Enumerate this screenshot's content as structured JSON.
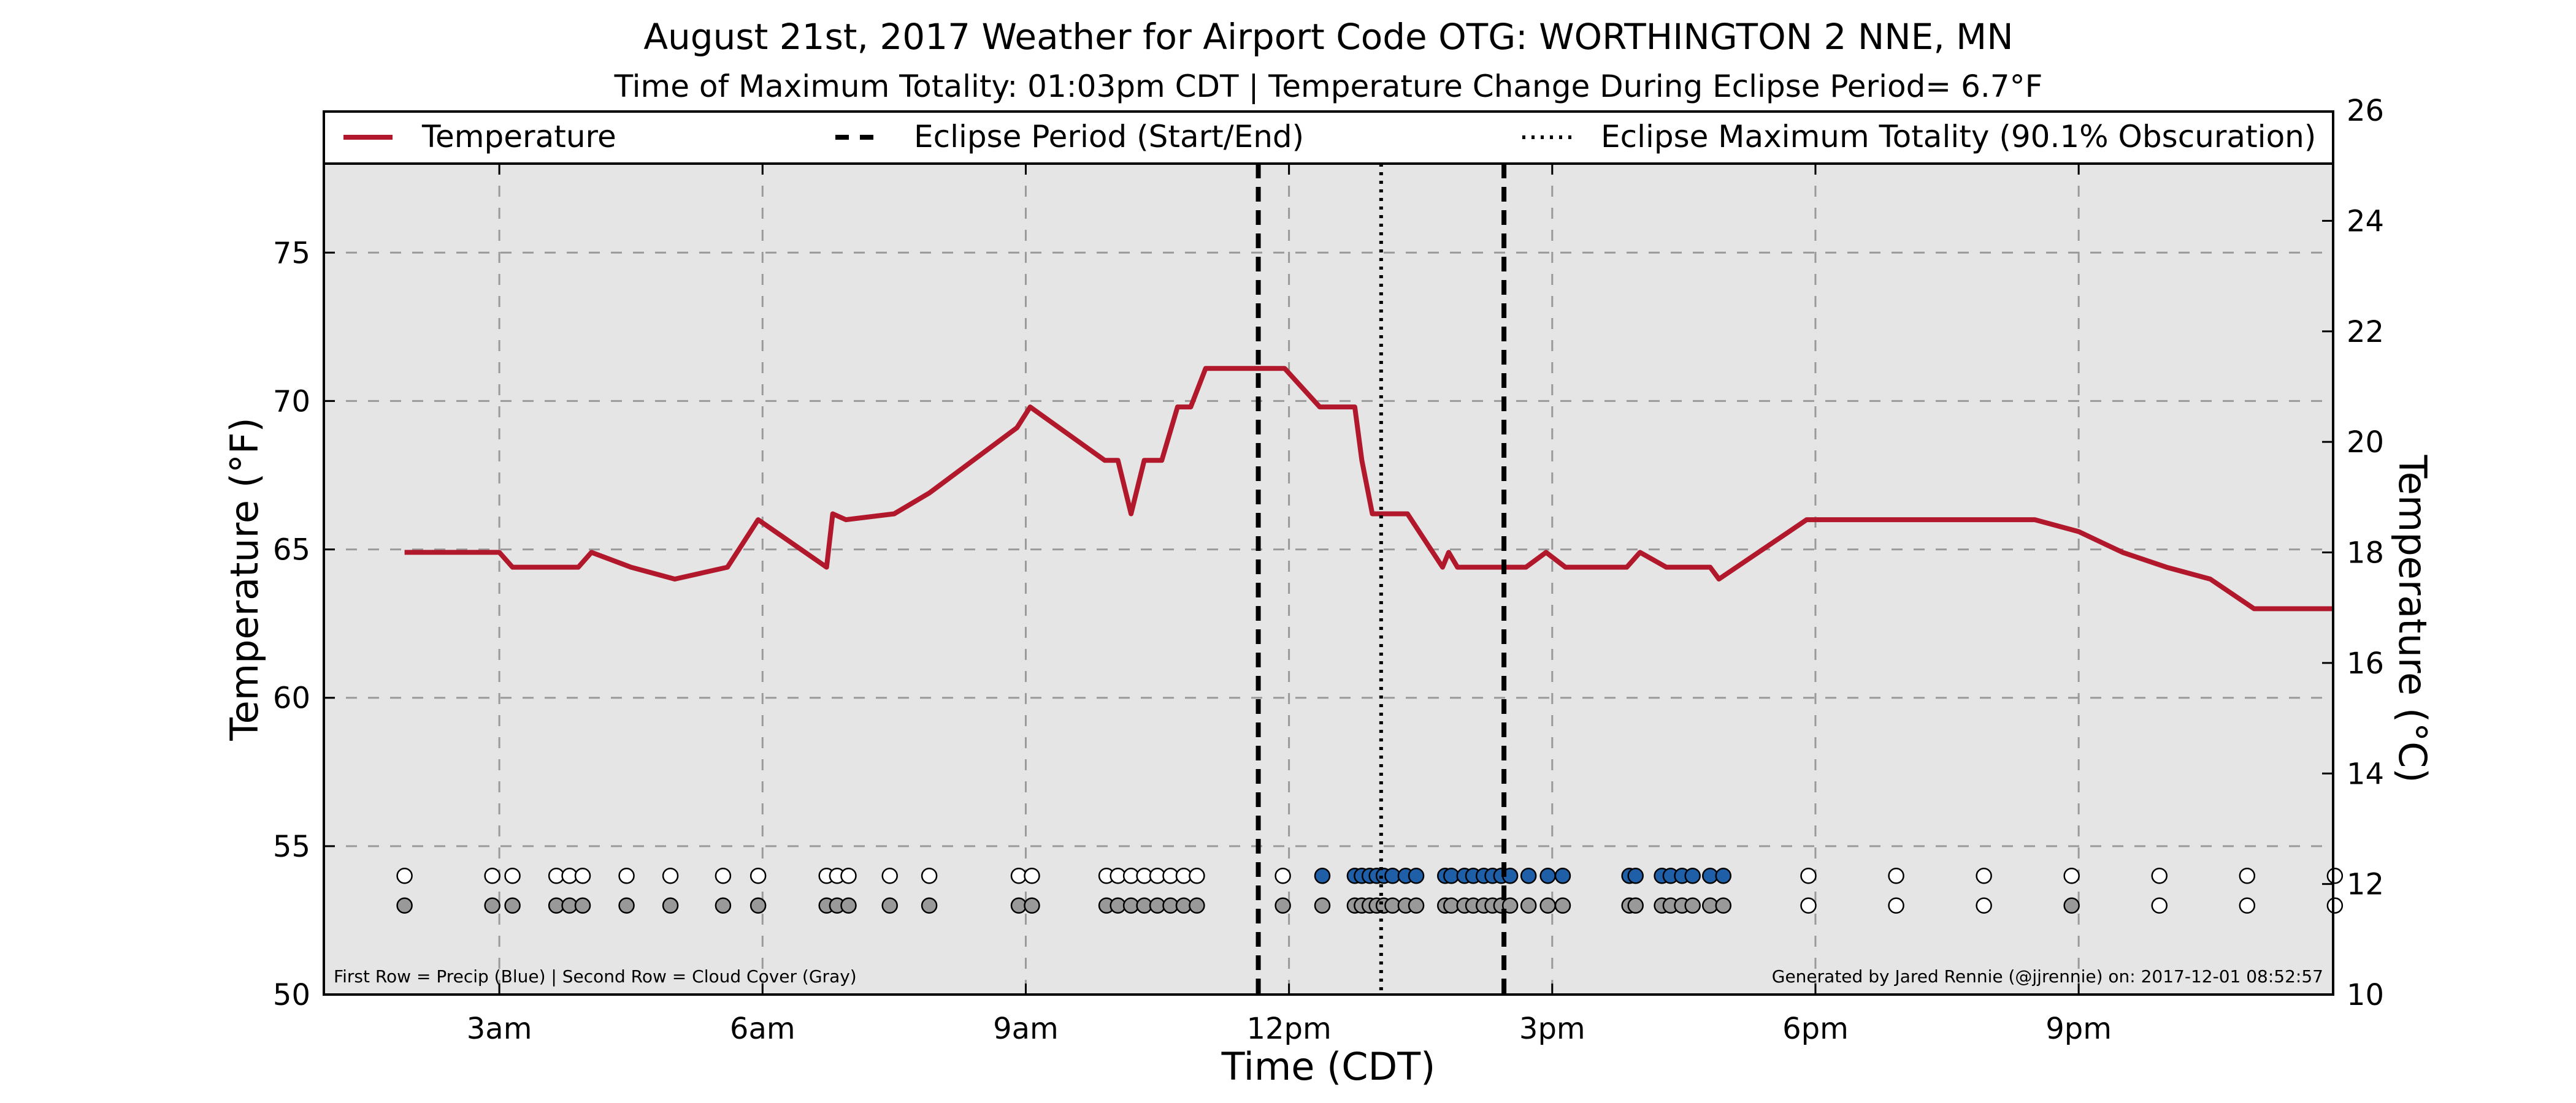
{
  "chart_data": {
    "type": "line",
    "title": "August 21st, 2017 Weather for Airport Code OTG: WORTHINGTON 2 NNE, MN",
    "subtitle": "Time of Maximum Totality: 01:03pm CDT | Temperature Change During Eclipse Period= 6.7°F",
    "xlabel": "Time (CDT)",
    "ylabel": "Temperature (°F)",
    "ylabel_right": "Temperature (°C)",
    "xlim": [
      1.0,
      23.9
    ],
    "ylim": [
      50,
      78
    ],
    "ylim_right": [
      10,
      26
    ],
    "x_ticks": [
      {
        "value": 3,
        "label": "3am"
      },
      {
        "value": 6,
        "label": "6am"
      },
      {
        "value": 9,
        "label": "9am"
      },
      {
        "value": 12,
        "label": "12pm"
      },
      {
        "value": 15,
        "label": "3pm"
      },
      {
        "value": 18,
        "label": "6pm"
      },
      {
        "value": 21,
        "label": "9pm"
      }
    ],
    "y_ticks": [
      50,
      55,
      60,
      65,
      70,
      75
    ],
    "y_ticks_right": [
      10,
      12,
      14,
      16,
      18,
      20,
      22,
      24,
      26
    ],
    "grid": true,
    "legend": {
      "placement": "top",
      "entries": [
        {
          "label": "Temperature",
          "style": "solid",
          "color": "#b2182b"
        },
        {
          "label": "Eclipse Period (Start/End)",
          "style": "dashed",
          "color": "#000000"
        },
        {
          "label": "Eclipse Maximum Totality (90.1% Obscuration)",
          "style": "dotted",
          "color": "#000000"
        }
      ]
    },
    "series": [
      {
        "name": "Temperature",
        "color": "#b2182b",
        "x": [
          1.92,
          2.25,
          2.6,
          3.0,
          3.15,
          3.55,
          3.9,
          4.05,
          4.5,
          5.0,
          5.6,
          5.95,
          6.73,
          6.8,
          6.95,
          7.5,
          7.9,
          8.9,
          9.05,
          9.9,
          10.05,
          10.2,
          10.35,
          10.55,
          10.73,
          10.88,
          11.05,
          11.3,
          11.5,
          11.75,
          11.95,
          12.35,
          12.75,
          12.83,
          12.95,
          13.35,
          13.75,
          13.82,
          13.92,
          14.3,
          14.45,
          14.7,
          14.93,
          15.15,
          15.5,
          15.85,
          16.0,
          16.3,
          16.8,
          16.9,
          17.9,
          18.1,
          18.5,
          19.0,
          19.5,
          20.0,
          20.5,
          21.0,
          21.5,
          22.0,
          22.5,
          23.0,
          23.9
        ],
        "values": [
          64.9,
          64.9,
          64.9,
          64.9,
          64.4,
          64.4,
          64.4,
          64.9,
          64.4,
          64.0,
          64.4,
          66.0,
          64.4,
          66.2,
          66.0,
          66.2,
          66.9,
          69.1,
          69.8,
          68.0,
          68.0,
          66.2,
          68.0,
          68.0,
          69.8,
          69.8,
          71.1,
          71.1,
          71.1,
          71.1,
          71.1,
          69.8,
          69.8,
          68.0,
          66.2,
          66.2,
          64.4,
          64.9,
          64.4,
          64.4,
          64.4,
          64.4,
          64.9,
          64.4,
          64.4,
          64.4,
          64.9,
          64.4,
          64.4,
          64.0,
          66.0,
          66.0,
          66.0,
          66.0,
          66.0,
          66.0,
          66.0,
          65.6,
          64.9,
          64.4,
          64.0,
          63.0,
          63.0
        ]
      }
    ],
    "eclipse": {
      "start": 11.65,
      "end": 14.45,
      "max_totality": 13.05,
      "max_totality_label": "01:03pm CDT",
      "obscuration": "90.1%",
      "temperature_change": "6.7°F"
    },
    "precip_row": {
      "name": "Precip (Blue)",
      "y_value": 54.0,
      "points": [
        {
          "x": 1.92,
          "precip": false
        },
        {
          "x": 2.92,
          "precip": false
        },
        {
          "x": 3.15,
          "precip": false
        },
        {
          "x": 3.65,
          "precip": false
        },
        {
          "x": 3.8,
          "precip": false
        },
        {
          "x": 3.95,
          "precip": false
        },
        {
          "x": 4.45,
          "precip": false
        },
        {
          "x": 4.95,
          "precip": false
        },
        {
          "x": 5.55,
          "precip": false
        },
        {
          "x": 5.95,
          "precip": false
        },
        {
          "x": 6.73,
          "precip": false
        },
        {
          "x": 6.85,
          "precip": false
        },
        {
          "x": 6.98,
          "precip": false
        },
        {
          "x": 7.45,
          "precip": false
        },
        {
          "x": 7.9,
          "precip": false
        },
        {
          "x": 8.92,
          "precip": false
        },
        {
          "x": 9.07,
          "precip": false
        },
        {
          "x": 9.92,
          "precip": false
        },
        {
          "x": 10.05,
          "precip": false
        },
        {
          "x": 10.2,
          "precip": false
        },
        {
          "x": 10.35,
          "precip": false
        },
        {
          "x": 10.5,
          "precip": false
        },
        {
          "x": 10.65,
          "precip": false
        },
        {
          "x": 10.8,
          "precip": false
        },
        {
          "x": 10.95,
          "precip": false
        },
        {
          "x": 11.93,
          "precip": false
        },
        {
          "x": 12.38,
          "precip": true
        },
        {
          "x": 12.75,
          "precip": true
        },
        {
          "x": 12.83,
          "precip": true
        },
        {
          "x": 12.92,
          "precip": true
        },
        {
          "x": 13.0,
          "precip": true
        },
        {
          "x": 13.08,
          "precip": true
        },
        {
          "x": 13.18,
          "precip": true
        },
        {
          "x": 13.33,
          "precip": true
        },
        {
          "x": 13.45,
          "precip": true
        },
        {
          "x": 13.78,
          "precip": true
        },
        {
          "x": 13.85,
          "precip": true
        },
        {
          "x": 14.0,
          "precip": true
        },
        {
          "x": 14.1,
          "precip": true
        },
        {
          "x": 14.22,
          "precip": true
        },
        {
          "x": 14.32,
          "precip": true
        },
        {
          "x": 14.42,
          "precip": true
        },
        {
          "x": 14.52,
          "precip": true
        },
        {
          "x": 14.73,
          "precip": true
        },
        {
          "x": 14.95,
          "precip": true
        },
        {
          "x": 15.12,
          "precip": true
        },
        {
          "x": 15.88,
          "precip": true
        },
        {
          "x": 15.95,
          "precip": true
        },
        {
          "x": 16.25,
          "precip": true
        },
        {
          "x": 16.35,
          "precip": true
        },
        {
          "x": 16.48,
          "precip": true
        },
        {
          "x": 16.6,
          "precip": true
        },
        {
          "x": 16.8,
          "precip": true
        },
        {
          "x": 16.95,
          "precip": true
        },
        {
          "x": 17.92,
          "precip": false
        },
        {
          "x": 18.92,
          "precip": false
        },
        {
          "x": 19.92,
          "precip": false
        },
        {
          "x": 20.92,
          "precip": false
        },
        {
          "x": 21.92,
          "precip": false
        },
        {
          "x": 22.92,
          "precip": false
        },
        {
          "x": 23.92,
          "precip": false
        }
      ]
    },
    "cloud_row": {
      "name": "Cloud Cover (Gray)",
      "y_value": 53.0,
      "points": [
        {
          "x": 1.92,
          "cloud": true
        },
        {
          "x": 2.92,
          "cloud": true
        },
        {
          "x": 3.15,
          "cloud": true
        },
        {
          "x": 3.65,
          "cloud": true
        },
        {
          "x": 3.8,
          "cloud": true
        },
        {
          "x": 3.95,
          "cloud": true
        },
        {
          "x": 4.45,
          "cloud": true
        },
        {
          "x": 4.95,
          "cloud": true
        },
        {
          "x": 5.55,
          "cloud": true
        },
        {
          "x": 5.95,
          "cloud": true
        },
        {
          "x": 6.73,
          "cloud": true
        },
        {
          "x": 6.85,
          "cloud": true
        },
        {
          "x": 6.98,
          "cloud": true
        },
        {
          "x": 7.45,
          "cloud": true
        },
        {
          "x": 7.9,
          "cloud": true
        },
        {
          "x": 8.92,
          "cloud": true
        },
        {
          "x": 9.07,
          "cloud": true
        },
        {
          "x": 9.92,
          "cloud": true
        },
        {
          "x": 10.05,
          "cloud": true
        },
        {
          "x": 10.2,
          "cloud": true
        },
        {
          "x": 10.35,
          "cloud": true
        },
        {
          "x": 10.5,
          "cloud": true
        },
        {
          "x": 10.65,
          "cloud": true
        },
        {
          "x": 10.8,
          "cloud": true
        },
        {
          "x": 10.95,
          "cloud": true
        },
        {
          "x": 11.93,
          "cloud": true
        },
        {
          "x": 12.38,
          "cloud": true
        },
        {
          "x": 12.75,
          "cloud": true
        },
        {
          "x": 12.83,
          "cloud": true
        },
        {
          "x": 12.92,
          "cloud": true
        },
        {
          "x": 13.0,
          "cloud": true
        },
        {
          "x": 13.08,
          "cloud": true
        },
        {
          "x": 13.18,
          "cloud": true
        },
        {
          "x": 13.33,
          "cloud": true
        },
        {
          "x": 13.45,
          "cloud": true
        },
        {
          "x": 13.78,
          "cloud": true
        },
        {
          "x": 13.85,
          "cloud": true
        },
        {
          "x": 14.0,
          "cloud": true
        },
        {
          "x": 14.1,
          "cloud": true
        },
        {
          "x": 14.22,
          "cloud": true
        },
        {
          "x": 14.32,
          "cloud": true
        },
        {
          "x": 14.42,
          "cloud": true
        },
        {
          "x": 14.52,
          "cloud": true
        },
        {
          "x": 14.73,
          "cloud": true
        },
        {
          "x": 14.95,
          "cloud": true
        },
        {
          "x": 15.12,
          "cloud": true
        },
        {
          "x": 15.88,
          "cloud": true
        },
        {
          "x": 15.95,
          "cloud": true
        },
        {
          "x": 16.25,
          "cloud": true
        },
        {
          "x": 16.35,
          "cloud": true
        },
        {
          "x": 16.48,
          "cloud": true
        },
        {
          "x": 16.6,
          "cloud": true
        },
        {
          "x": 16.8,
          "cloud": true
        },
        {
          "x": 16.95,
          "cloud": true
        },
        {
          "x": 17.92,
          "cloud": false
        },
        {
          "x": 18.92,
          "cloud": false
        },
        {
          "x": 19.92,
          "cloud": false
        },
        {
          "x": 20.92,
          "cloud": true
        },
        {
          "x": 21.92,
          "cloud": false
        },
        {
          "x": 22.92,
          "cloud": false
        },
        {
          "x": 23.92,
          "cloud": false
        }
      ]
    },
    "annotations": {
      "rows_note": "First Row = Precip (Blue) | Second Row = Cloud Cover (Gray)",
      "credit": "Generated by Jared Rennie (@jjrennie) on: 2017-12-01 08:52:57"
    },
    "colors": {
      "temperature": "#b2182b",
      "precip": "#1f5fa8",
      "cloud": "#999999",
      "empty_marker": "#ffffff",
      "plot_background": "#e5e5e5",
      "grid": "#9a9a9a"
    }
  }
}
